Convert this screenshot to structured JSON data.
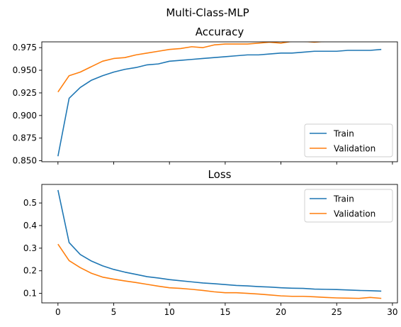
{
  "suptitle": "Multi-Class-MLP",
  "colors": {
    "train": "#1f77b4",
    "validation": "#ff7f0e"
  },
  "chart_data": [
    {
      "type": "line",
      "title": "Accuracy",
      "xlabel": "",
      "ylabel": "",
      "xlim": [
        -1.45,
        30.45
      ],
      "ylim": [
        0.8489,
        0.9814
      ],
      "xticks": [
        0,
        5,
        10,
        15,
        20,
        25,
        30
      ],
      "xtick_labels_visible": false,
      "yticks": [
        0.85,
        0.875,
        0.9,
        0.925,
        0.95,
        0.975
      ],
      "ytick_labels": [
        "0.850",
        "0.875",
        "0.900",
        "0.925",
        "0.950",
        "0.975"
      ],
      "grid": false,
      "legend_position": "lower-right",
      "x": [
        0,
        1,
        2,
        3,
        4,
        5,
        6,
        7,
        8,
        9,
        10,
        11,
        12,
        13,
        14,
        15,
        16,
        17,
        18,
        19,
        20,
        21,
        22,
        23,
        24,
        25,
        26,
        27,
        28,
        29
      ],
      "series": [
        {
          "name": "Train",
          "color_key": "train",
          "values": [
            0.855,
            0.919,
            0.931,
            0.939,
            0.944,
            0.948,
            0.951,
            0.953,
            0.956,
            0.957,
            0.96,
            0.961,
            0.962,
            0.963,
            0.964,
            0.965,
            0.966,
            0.967,
            0.967,
            0.968,
            0.969,
            0.969,
            0.97,
            0.971,
            0.971,
            0.971,
            0.972,
            0.972,
            0.972,
            0.973
          ]
        },
        {
          "name": "Validation",
          "color_key": "validation",
          "values": [
            0.926,
            0.944,
            0.948,
            0.954,
            0.96,
            0.963,
            0.964,
            0.967,
            0.969,
            0.971,
            0.973,
            0.974,
            0.976,
            0.975,
            0.978,
            0.979,
            0.979,
            0.979,
            0.98,
            0.981,
            0.98,
            0.982,
            0.982,
            0.981,
            0.982,
            0.983,
            0.982,
            0.984,
            0.983,
            0.983
          ]
        }
      ]
    },
    {
      "type": "line",
      "title": "Loss",
      "xlabel": "",
      "ylabel": "",
      "xlim": [
        -1.45,
        30.45
      ],
      "ylim": [
        0.058,
        0.582
      ],
      "xticks": [
        0,
        5,
        10,
        15,
        20,
        25,
        30
      ],
      "xtick_labels": [
        "0",
        "5",
        "10",
        "15",
        "20",
        "25",
        "30"
      ],
      "yticks": [
        0.1,
        0.2,
        0.3,
        0.4,
        0.5
      ],
      "ytick_labels": [
        "0.1",
        "0.2",
        "0.3",
        "0.4",
        "0.5"
      ],
      "grid": false,
      "legend_position": "upper-right",
      "x": [
        0,
        1,
        2,
        3,
        4,
        5,
        6,
        7,
        8,
        9,
        10,
        11,
        12,
        13,
        14,
        15,
        16,
        17,
        18,
        19,
        20,
        21,
        22,
        23,
        24,
        25,
        26,
        27,
        28,
        29
      ],
      "series": [
        {
          "name": "Train",
          "color_key": "train",
          "values": [
            0.557,
            0.325,
            0.272,
            0.243,
            0.222,
            0.206,
            0.194,
            0.184,
            0.174,
            0.168,
            0.161,
            0.156,
            0.151,
            0.146,
            0.143,
            0.139,
            0.135,
            0.133,
            0.13,
            0.128,
            0.125,
            0.123,
            0.122,
            0.119,
            0.118,
            0.117,
            0.115,
            0.113,
            0.112,
            0.11
          ]
        },
        {
          "name": "Validation",
          "color_key": "validation",
          "values": [
            0.318,
            0.245,
            0.214,
            0.189,
            0.172,
            0.163,
            0.155,
            0.148,
            0.14,
            0.132,
            0.125,
            0.122,
            0.118,
            0.113,
            0.107,
            0.103,
            0.103,
            0.1,
            0.097,
            0.093,
            0.089,
            0.087,
            0.087,
            0.085,
            0.082,
            0.08,
            0.079,
            0.078,
            0.082,
            0.078
          ]
        }
      ]
    }
  ]
}
